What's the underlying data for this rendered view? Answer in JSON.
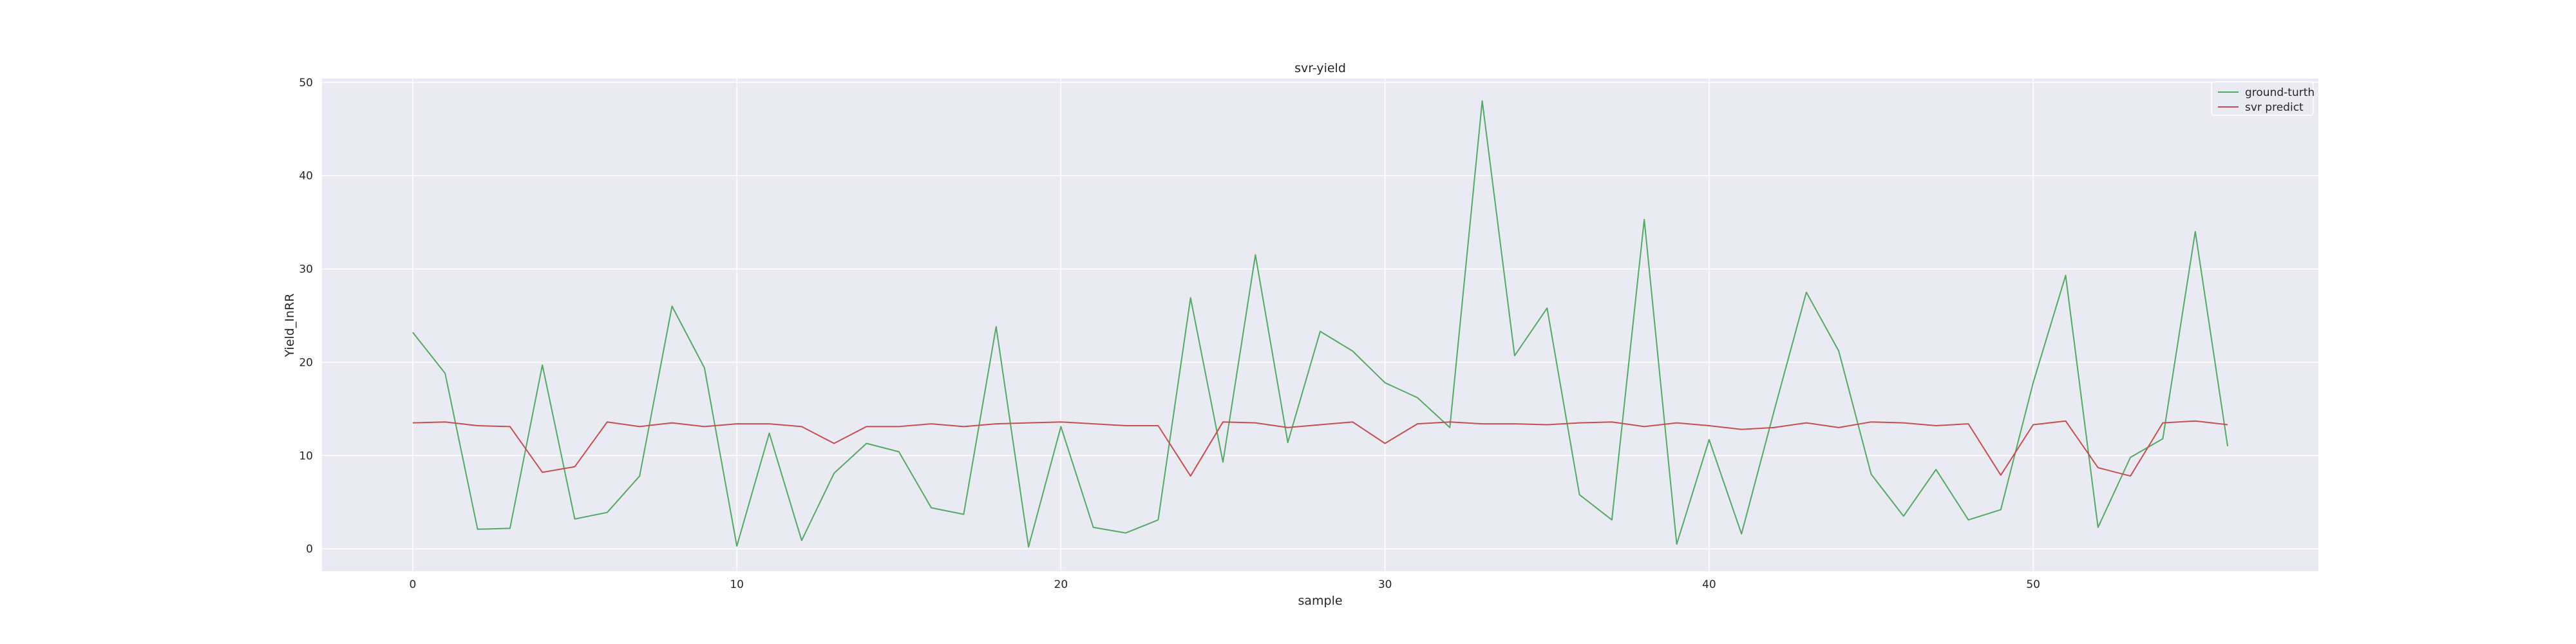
{
  "chart_data": {
    "type": "line",
    "title": "svr-yield",
    "xlabel": "sample",
    "ylabel": "Yield_InRR",
    "x": [
      0,
      1,
      2,
      3,
      4,
      5,
      6,
      7,
      8,
      9,
      10,
      11,
      12,
      13,
      14,
      15,
      16,
      17,
      18,
      19,
      20,
      21,
      22,
      23,
      24,
      25,
      26,
      27,
      28,
      29,
      30,
      31,
      32,
      33,
      34,
      35,
      36,
      37,
      38,
      39,
      40,
      41,
      42,
      43,
      44,
      45,
      46,
      47,
      48,
      49,
      50,
      51,
      52,
      53,
      54,
      55,
      56
    ],
    "xlim": [
      -2.8,
      58.8
    ],
    "ylim": [
      -2.4,
      50.4
    ],
    "xticks": [
      0,
      10,
      20,
      30,
      40,
      50
    ],
    "yticks": [
      0,
      10,
      20,
      30,
      40,
      50
    ],
    "grid": true,
    "legend_position": "upper-right",
    "background": "#eaeaf2",
    "series": [
      {
        "name": "ground-turth",
        "color": "#55a868",
        "values": [
          23.2,
          18.8,
          2.1,
          2.2,
          19.7,
          3.2,
          3.9,
          7.8,
          26.0,
          19.4,
          0.3,
          12.4,
          0.9,
          8.1,
          11.3,
          10.4,
          4.4,
          3.7,
          23.8,
          0.2,
          13.1,
          2.3,
          1.7,
          3.1,
          26.9,
          9.3,
          31.5,
          11.4,
          23.3,
          21.2,
          17.8,
          16.2,
          13.0,
          48.0,
          20.7,
          25.8,
          5.8,
          3.1,
          35.3,
          0.5,
          11.7,
          1.6,
          14.7,
          27.5,
          21.2,
          8.0,
          3.5,
          8.5,
          3.1,
          4.2,
          17.8,
          29.3,
          2.3,
          9.8,
          11.8,
          34.0,
          11.0
        ]
      },
      {
        "name": "svr predict",
        "color": "#c44e52",
        "values": [
          13.5,
          13.6,
          13.2,
          13.1,
          8.2,
          8.8,
          13.6,
          13.1,
          13.5,
          13.1,
          13.4,
          13.4,
          13.1,
          11.3,
          13.1,
          13.1,
          13.4,
          13.1,
          13.4,
          13.5,
          13.6,
          13.4,
          13.2,
          13.2,
          7.8,
          13.6,
          13.5,
          13.0,
          13.3,
          13.6,
          11.3,
          13.4,
          13.6,
          13.4,
          13.4,
          13.3,
          13.5,
          13.6,
          13.1,
          13.5,
          13.2,
          12.8,
          13.0,
          13.5,
          13.0,
          13.6,
          13.5,
          13.2,
          13.4,
          7.9,
          13.3,
          13.7,
          8.7,
          7.8,
          13.5,
          13.7,
          13.3
        ]
      }
    ]
  }
}
